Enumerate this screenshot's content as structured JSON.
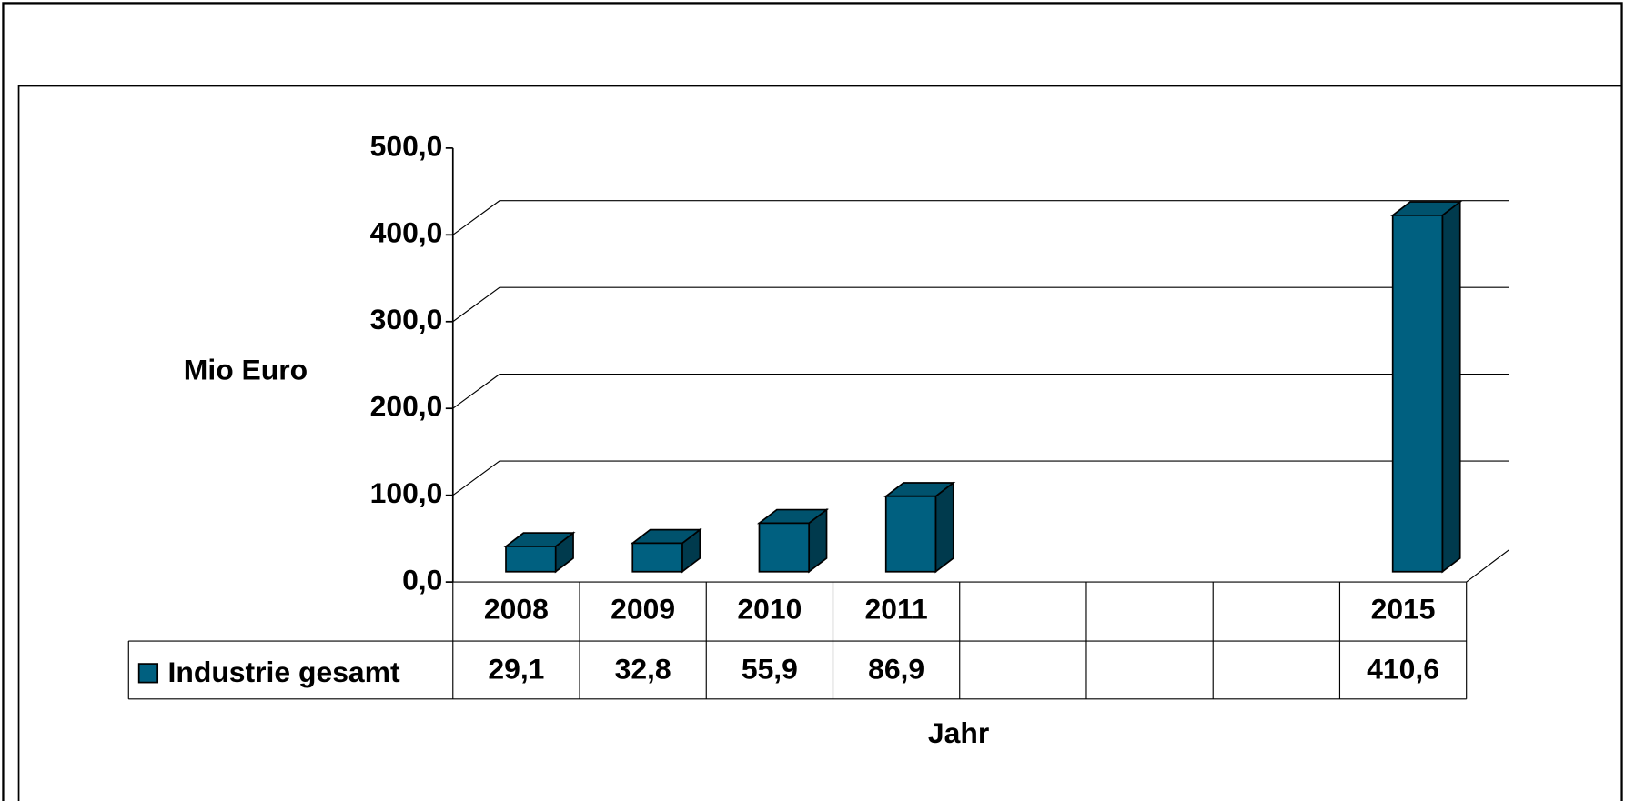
{
  "chart_data": {
    "type": "bar3d",
    "y_label": "Mio Euro",
    "x_label": "Jahr",
    "categories": [
      "2008",
      "2009",
      "2010",
      "2011",
      null,
      null,
      null,
      "2015"
    ],
    "series": [
      {
        "name": "Industrie gesamt",
        "color": "#006080",
        "values": [
          29.1,
          32.8,
          55.9,
          86.9,
          null,
          null,
          null,
          410.6
        ],
        "value_labels": [
          "29,1",
          "32,8",
          "55,9",
          "86,9",
          null,
          null,
          null,
          "410,6"
        ]
      }
    ],
    "ylim": [
      0,
      500
    ],
    "yticks": [
      {
        "value": 0,
        "label": "0,0"
      },
      {
        "value": 100,
        "label": "100,0"
      },
      {
        "value": 200,
        "label": "200,0"
      },
      {
        "value": 300,
        "label": "300,0"
      },
      {
        "value": 400,
        "label": "400,0"
      },
      {
        "value": 500,
        "label": "500,0"
      }
    ],
    "grid": true,
    "data_table": true
  }
}
